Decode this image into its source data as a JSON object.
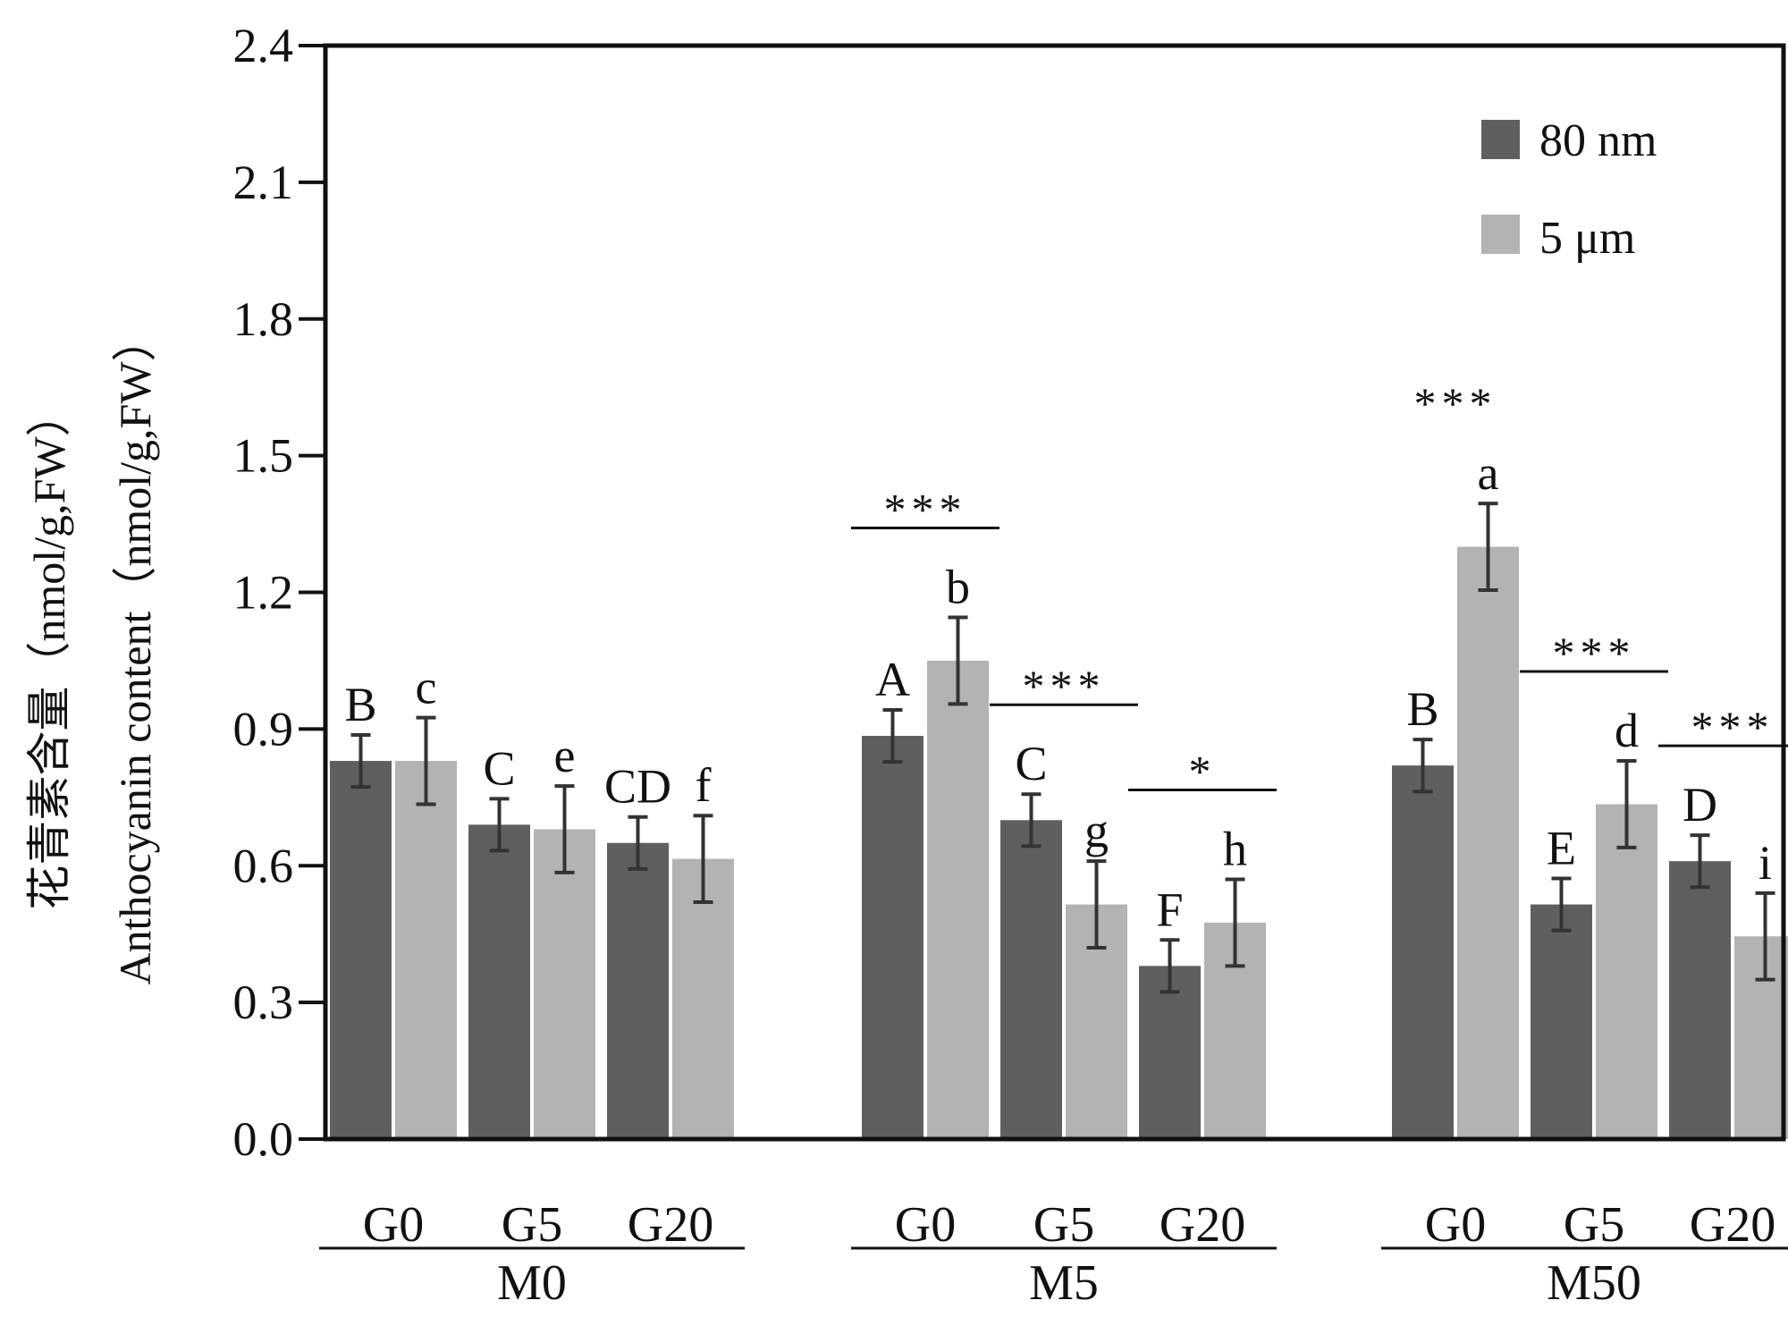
{
  "chart_data": {
    "type": "bar",
    "title": "",
    "ylabel_cn": "花青素含量（nmol/g,FW）",
    "ylabel_en": "Anthocyanin content（nmol/g,FW）",
    "ylim": [
      0,
      2.4
    ],
    "yticks": [
      "0.0",
      "0.3",
      "0.6",
      "0.9",
      "1.2",
      "1.5",
      "1.8",
      "2.1",
      "2.4"
    ],
    "legend_position": "top-right",
    "series": [
      {
        "name": "80 nm",
        "color": "#5f5f5f"
      },
      {
        "name": "5 μm",
        "color": "#b3b3b3"
      }
    ],
    "groups": [
      {
        "label": "M0",
        "subgroups": [
          {
            "label": "G0",
            "values": [
              0.83,
              0.83
            ],
            "errors": [
              0.057,
              0.095
            ],
            "letters": [
              "B",
              "c"
            ],
            "sig": ""
          },
          {
            "label": "G5",
            "values": [
              0.69,
              0.68
            ],
            "errors": [
              0.057,
              0.095
            ],
            "letters": [
              "C",
              "e"
            ],
            "sig": ""
          },
          {
            "label": "G20",
            "values": [
              0.65,
              0.615
            ],
            "errors": [
              0.057,
              0.095
            ],
            "letters": [
              "CD",
              "f"
            ],
            "sig": ""
          }
        ]
      },
      {
        "label": "M5",
        "subgroups": [
          {
            "label": "G0",
            "values": [
              0.885,
              1.05
            ],
            "errors": [
              0.057,
              0.095
            ],
            "letters": [
              "A",
              "b"
            ],
            "sig": "***"
          },
          {
            "label": "G5",
            "values": [
              0.7,
              0.515
            ],
            "errors": [
              0.057,
              0.095
            ],
            "letters": [
              "C",
              "g"
            ],
            "sig": "***"
          },
          {
            "label": "G20",
            "values": [
              0.38,
              0.475
            ],
            "errors": [
              0.057,
              0.095
            ],
            "letters": [
              "F",
              "h"
            ],
            "sig": "*"
          }
        ]
      },
      {
        "label": "M50",
        "subgroups": [
          {
            "label": "G0",
            "values": [
              0.82,
              1.3
            ],
            "errors": [
              0.057,
              0.095
            ],
            "letters": [
              "B",
              "a"
            ],
            "sig": "***"
          },
          {
            "label": "G5",
            "values": [
              0.515,
              0.735
            ],
            "errors": [
              0.057,
              0.095
            ],
            "letters": [
              "E",
              "d"
            ],
            "sig": "***"
          },
          {
            "label": "G20",
            "values": [
              0.61,
              0.445
            ],
            "errors": [
              0.057,
              0.095
            ],
            "letters": [
              "D",
              "i"
            ],
            "sig": "***"
          }
        ]
      }
    ]
  }
}
